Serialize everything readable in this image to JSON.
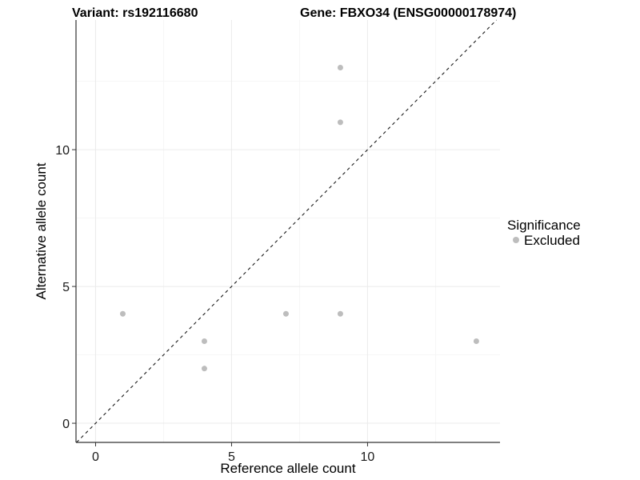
{
  "chart_data": {
    "type": "scatter",
    "title_left": "Variant: rs192116680",
    "title_right": "Gene: FBXO34 (ENSG00000178974)",
    "xlabel": "Reference allele count",
    "ylabel": "Alternative allele count",
    "x_ticks": [
      0,
      5,
      10
    ],
    "y_ticks": [
      0,
      5,
      10
    ],
    "minor_ticks": [
      2.5,
      7.5,
      12.5
    ],
    "xlim": [
      -0.72,
      14.87
    ],
    "ylim": [
      -0.7,
      14.74
    ],
    "grid": "major+minor",
    "legend_position": "right",
    "series": [
      {
        "name": "Excluded",
        "color": "#bdbdbd",
        "points": [
          {
            "x": 1,
            "y": 4
          },
          {
            "x": 4,
            "y": 2
          },
          {
            "x": 4,
            "y": 3
          },
          {
            "x": 7,
            "y": 4
          },
          {
            "x": 9,
            "y": 4
          },
          {
            "x": 9,
            "y": 11
          },
          {
            "x": 9,
            "y": 13
          },
          {
            "x": 14,
            "y": 3
          }
        ]
      }
    ],
    "identity_line": {
      "style": "dashed",
      "slope": 1,
      "intercept": 0
    },
    "legend": {
      "title": "Significance",
      "items": [
        {
          "label": "Excluded",
          "color": "#bdbdbd"
        }
      ]
    },
    "colors": {
      "point": "#bdbdbd",
      "dashed_line": "#1a1a1a",
      "axis_line": "#333333",
      "grid_major": "#ebebeb",
      "grid_minor": "#f5f5f5"
    }
  }
}
